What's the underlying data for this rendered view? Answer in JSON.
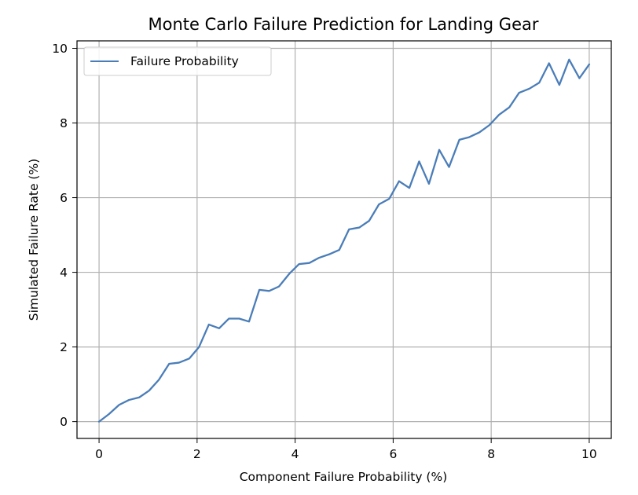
{
  "chart_data": {
    "type": "line",
    "title": "Monte Carlo Failure Prediction for Landing Gear",
    "xlabel": "Component Failure Probability (%)",
    "ylabel": "Simulated Failure Rate (%)",
    "xlim": [
      -0.45,
      10.45
    ],
    "ylim": [
      -0.45,
      10.2
    ],
    "xticks": [
      0,
      2,
      4,
      6,
      8,
      10
    ],
    "yticks": [
      0,
      2,
      4,
      6,
      8,
      10
    ],
    "grid": true,
    "legend_position": "upper-left",
    "series": [
      {
        "name": "Failure Probability",
        "color": "#4a7db8",
        "x": [
          0,
          0.2,
          0.41,
          0.61,
          0.82,
          1.02,
          1.22,
          1.43,
          1.63,
          1.84,
          2.04,
          2.24,
          2.45,
          2.65,
          2.86,
          3.06,
          3.27,
          3.47,
          3.67,
          3.88,
          4.08,
          4.29,
          4.49,
          4.69,
          4.9,
          5.1,
          5.31,
          5.51,
          5.71,
          5.92,
          6.12,
          6.33,
          6.53,
          6.73,
          6.94,
          7.14,
          7.35,
          7.55,
          7.76,
          7.96,
          8.16,
          8.37,
          8.57,
          8.78,
          8.98,
          9.18,
          9.39,
          9.59,
          9.8,
          10.0
        ],
        "y": [
          0.0,
          0.2,
          0.45,
          0.58,
          0.65,
          0.83,
          1.12,
          1.55,
          1.58,
          1.69,
          2.0,
          2.6,
          2.5,
          2.76,
          2.76,
          2.68,
          3.53,
          3.5,
          3.62,
          3.96,
          4.22,
          4.25,
          4.39,
          4.48,
          4.6,
          5.15,
          5.2,
          5.38,
          5.82,
          5.97,
          6.44,
          6.26,
          6.97,
          6.37,
          7.28,
          6.82,
          7.55,
          7.62,
          7.75,
          7.94,
          8.22,
          8.42,
          8.81,
          8.92,
          9.08,
          9.6,
          9.02,
          9.7,
          9.2,
          9.57
        ]
      }
    ]
  }
}
